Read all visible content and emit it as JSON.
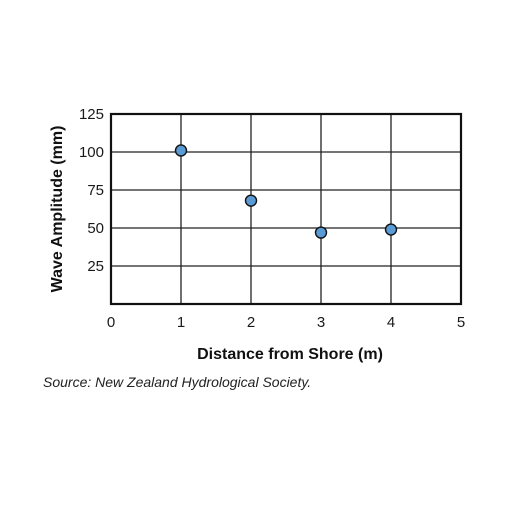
{
  "chart_data": {
    "type": "scatter",
    "xlabel": "Distance from Shore (m)",
    "ylabel": "Wave Amplitude (mm)",
    "xlim": [
      0,
      5
    ],
    "ylim": [
      0,
      125
    ],
    "x_ticks": [
      "0",
      "1",
      "2",
      "3",
      "4",
      "5"
    ],
    "y_ticks": [
      "25",
      "50",
      "75",
      "100",
      "125"
    ],
    "grid": true,
    "points": [
      {
        "x": 1,
        "y": 101
      },
      {
        "x": 2,
        "y": 68
      },
      {
        "x": 3,
        "y": 47
      },
      {
        "x": 4,
        "y": 49
      }
    ],
    "marker_color": "#5b9bd5",
    "marker_edge": "#111111",
    "source": "Source: New Zealand Hydrological Society."
  }
}
